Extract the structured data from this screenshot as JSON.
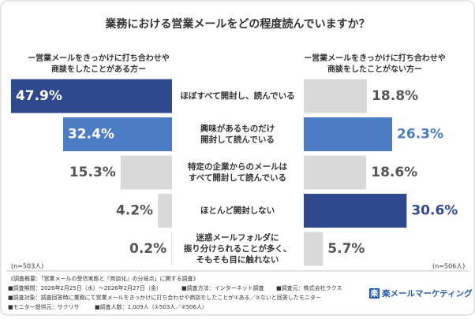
{
  "chart_data": {
    "type": "butterfly-bar",
    "title": "業務における営業メールをどの程度読んでいますか？",
    "categories": [
      [
        "ほぼすべて開封し、読んでいる"
      ],
      [
        "興味があるものだけ",
        "開封して読んでいる"
      ],
      [
        "特定の企業からのメールは",
        "すべて開封して読んでいる"
      ],
      [
        "ほとんど開封しない"
      ],
      [
        "迷惑メールフォルダに",
        "振り分けられることが多く、",
        "そもそも目に触れない"
      ]
    ],
    "xlim": [
      0,
      50
    ],
    "series": [
      {
        "name": [
          "ー営業メールをきっかけに打ち合わせや",
          "商談をしたことがある方ー"
        ],
        "side": "left",
        "sample": "(n=503人)",
        "colors": [
          "#2e4a8c",
          "#4c7cc4",
          "#d9d9d9",
          "#d9d9d9",
          "#d9d9d9"
        ],
        "values": [
          47.9,
          32.4,
          15.3,
          4.2,
          0.2
        ],
        "value_labels": [
          "47.9%",
          "32.4%",
          "15.3%",
          "4.2%",
          "0.2%"
        ]
      },
      {
        "name": [
          "ー営業メールをきっかけに打ち合わせや",
          "商談をしたことがない方ー"
        ],
        "side": "right",
        "sample": "(n=506人)",
        "colors": [
          "#d9d9d9",
          "#4c7cc4",
          "#d9d9d9",
          "#2e4a8c",
          "#d9d9d9"
        ],
        "values": [
          18.8,
          26.3,
          18.6,
          30.6,
          5.7
        ],
        "value_labels": [
          "18.8%",
          "26.3%",
          "18.6%",
          "30.6%",
          "5.7%"
        ]
      }
    ],
    "notes": [
      [
        "《調査概要：「営業メールの受信実態と『商談化』の分岐点」に関する調査》"
      ],
      [
        "■調査期間：2026年2月25日（水）〜2026年2月27日（金）",
        "■調査方法：インターネット調査",
        "■調査元：株式会社ラクス"
      ],
      [
        "■調査対象：調査回答時に業務にて営業メールをきっかけに打ち合わせや商談をしたことが①ある／②ないと回答したモニター"
      ],
      [
        "■モニター提供元：サクリサ",
        "■調査人数：1,009人（①503人／②506人）"
      ]
    ],
    "logo": {
      "mark": "楽",
      "text": "楽メールマーケティング"
    }
  }
}
